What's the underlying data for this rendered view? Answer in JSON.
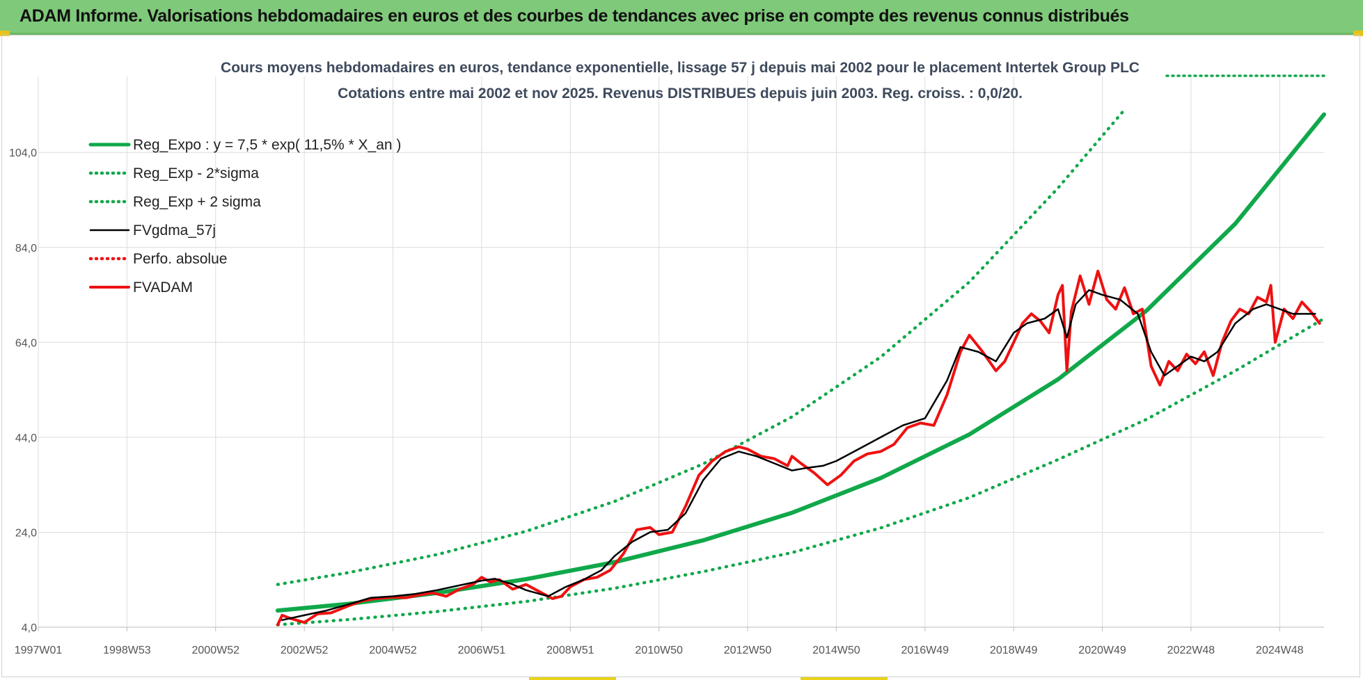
{
  "header": {
    "title": "ADAM Informe. Valorisations hebdomadaires en euros et des courbes de tendances avec prise en compte des revenus connus distribués"
  },
  "chart_data": {
    "type": "line",
    "title": "Cours moyens hebdomadaires en euros, tendance exponentielle, lissage 57 j depuis mai 2002 pour le placement Intertek Group PLC",
    "subtitle": "Cotations entre mai 2002 et nov 2025. Revenus DISTRIBUES depuis juin 2003. Reg. croiss. : 0,0/20.",
    "xlabel": "",
    "ylabel": "",
    "x_tick_labels": [
      "1997W01",
      "1998W53",
      "2000W52",
      "2002W52",
      "2004W52",
      "2006W51",
      "2008W51",
      "2010W50",
      "2012W50",
      "2014W50",
      "2016W49",
      "2018W49",
      "2020W49",
      "2022W48",
      "2024W48"
    ],
    "x_tick_values": [
      1997.0,
      1999.0,
      2001.0,
      2003.0,
      2005.0,
      2007.0,
      2009.0,
      2011.0,
      2013.0,
      2015.0,
      2017.0,
      2019.0,
      2021.0,
      2023.0,
      2025.0
    ],
    "y_tick_labels": [
      "4,0",
      "24,0",
      "44,0",
      "64,0",
      "84,0",
      "104,0"
    ],
    "y_tick_values": [
      4,
      24,
      44,
      64,
      84,
      104
    ],
    "xlim": [
      1997.0,
      2026.0
    ],
    "ylim": [
      4,
      120
    ],
    "grid": true,
    "legend_position": "top-left",
    "colors": {
      "green": "#10a84a",
      "black": "#000000",
      "red": "#ee1111",
      "grid": "#dcdcdc",
      "axis_text": "#555555",
      "title_text": "#3e4a5c"
    },
    "series": [
      {
        "name": "Reg_Expo : y = 7,5 * exp( 11,5% *  X_an )",
        "style": "solid-thick",
        "color": "#10a84a",
        "x": [
          2002.4,
          2004,
          2006,
          2008,
          2010,
          2012,
          2014,
          2016,
          2018,
          2020,
          2022,
          2024,
          2026
        ],
        "y": [
          7.5,
          8.9,
          11.2,
          14.1,
          17.7,
          22.3,
          28.1,
          35.4,
          44.6,
          56.2,
          70.7,
          89.0,
          112.0
        ]
      },
      {
        "name": "Reg_Exp - 2*sigma",
        "style": "dotted",
        "color": "#10a84a",
        "x": [
          2002.4,
          2004,
          2006,
          2008,
          2010,
          2012,
          2014,
          2016,
          2018,
          2020,
          2022,
          2024,
          2026
        ],
        "y": [
          4.5,
          5.6,
          7.3,
          9.4,
          12.2,
          15.7,
          19.7,
          24.9,
          31.3,
          39.3,
          47.8,
          58.0,
          69.0
        ]
      },
      {
        "name": "Reg_Exp + 2 sigma",
        "style": "dotted",
        "color": "#10a84a",
        "x": [
          2002.4,
          2004,
          2006,
          2008,
          2010,
          2012,
          2014,
          2016,
          2018,
          2020,
          2021.5
        ],
        "y": [
          13.0,
          15.5,
          19.3,
          24.2,
          30.5,
          38.4,
          48.3,
          60.9,
          76.7,
          96.5,
          113.0
        ]
      },
      {
        "name": "FVgdma_57j",
        "style": "solid",
        "color": "#000000",
        "x": [
          2002.5,
          2003.0,
          2003.5,
          2004.0,
          2004.5,
          2005.0,
          2005.5,
          2006.0,
          2006.5,
          2007.0,
          2007.3,
          2007.7,
          2008.0,
          2008.5,
          2008.9,
          2009.3,
          2009.7,
          2010.0,
          2010.4,
          2010.8,
          2011.2,
          2011.6,
          2012.0,
          2012.4,
          2012.8,
          2013.2,
          2013.6,
          2014.0,
          2014.3,
          2014.7,
          2015.0,
          2015.5,
          2016.0,
          2016.5,
          2017.0,
          2017.5,
          2017.8,
          2018.2,
          2018.6,
          2019.0,
          2019.3,
          2019.7,
          2020.0,
          2020.2,
          2020.4,
          2020.7,
          2021.0,
          2021.4,
          2021.8,
          2022.1,
          2022.4,
          2022.7,
          2023.0,
          2023.3,
          2023.6,
          2024.0,
          2024.4,
          2024.7,
          2025.0,
          2025.3,
          2025.8
        ],
        "y": [
          5.5,
          6.5,
          7.5,
          8.8,
          10.2,
          10.5,
          11.0,
          11.8,
          12.8,
          13.8,
          14.2,
          13.0,
          11.8,
          10.5,
          12.5,
          14.0,
          16.0,
          19.0,
          22.0,
          24.0,
          24.5,
          28.0,
          35.0,
          39.5,
          41.0,
          40.0,
          38.5,
          37.0,
          37.5,
          38.0,
          39.0,
          41.5,
          44.0,
          46.5,
          48.0,
          56.0,
          63.0,
          62.0,
          60.0,
          66.0,
          68.0,
          69.0,
          71.0,
          65.0,
          72.0,
          75.0,
          74.0,
          73.0,
          70.0,
          62.0,
          57.0,
          59.0,
          61.0,
          60.0,
          62.0,
          68.0,
          71.0,
          72.0,
          71.0,
          70.0,
          70.0
        ]
      },
      {
        "name": "Perfo. absolue",
        "style": "dotted",
        "color": "#ee1111",
        "x": [],
        "y": []
      },
      {
        "name": "FVADAM",
        "style": "solid-thick",
        "color": "#ee1111",
        "x": [
          2002.4,
          2002.5,
          2002.7,
          2003.0,
          2003.3,
          2003.6,
          2004.0,
          2004.3,
          2004.6,
          2005.0,
          2005.3,
          2005.6,
          2005.9,
          2006.2,
          2006.5,
          2006.8,
          2007.0,
          2007.2,
          2007.4,
          2007.7,
          2008.0,
          2008.3,
          2008.6,
          2008.8,
          2009.0,
          2009.3,
          2009.6,
          2009.9,
          2010.2,
          2010.5,
          2010.8,
          2011.0,
          2011.3,
          2011.6,
          2011.9,
          2012.2,
          2012.5,
          2012.8,
          2013.0,
          2013.3,
          2013.6,
          2013.9,
          2014.0,
          2014.2,
          2014.5,
          2014.8,
          2015.1,
          2015.4,
          2015.7,
          2016.0,
          2016.3,
          2016.6,
          2016.9,
          2017.2,
          2017.5,
          2017.8,
          2018.0,
          2018.3,
          2018.6,
          2018.8,
          2019.0,
          2019.2,
          2019.4,
          2019.6,
          2019.8,
          2020.0,
          2020.1,
          2020.2,
          2020.3,
          2020.5,
          2020.7,
          2020.9,
          2021.1,
          2021.3,
          2021.5,
          2021.7,
          2021.9,
          2022.1,
          2022.3,
          2022.5,
          2022.7,
          2022.9,
          2023.1,
          2023.3,
          2023.5,
          2023.7,
          2023.9,
          2024.1,
          2024.3,
          2024.5,
          2024.7,
          2024.8,
          2024.9,
          2025.1,
          2025.3,
          2025.5,
          2025.7,
          2025.9
        ],
        "y": [
          4.5,
          6.5,
          5.8,
          5.0,
          6.8,
          7.0,
          8.5,
          9.5,
          10.0,
          10.3,
          10.2,
          10.8,
          11.2,
          10.5,
          12.0,
          13.0,
          14.5,
          13.5,
          14.0,
          12.0,
          13.0,
          11.5,
          10.0,
          10.5,
          12.5,
          14.0,
          14.5,
          16.0,
          19.5,
          24.5,
          25.0,
          23.5,
          24.0,
          29.5,
          36.0,
          39.0,
          41.0,
          42.0,
          41.5,
          40.0,
          39.5,
          38.0,
          40.0,
          38.5,
          36.5,
          34.0,
          36.0,
          39.0,
          40.5,
          41.0,
          42.5,
          46.0,
          47.0,
          46.5,
          53.0,
          62.0,
          65.5,
          62.0,
          58.0,
          60.0,
          64.0,
          68.0,
          70.0,
          68.5,
          66.0,
          74.0,
          76.0,
          58.0,
          70.5,
          78.0,
          72.0,
          79.0,
          73.0,
          71.0,
          75.5,
          70.0,
          71.0,
          59.0,
          55.0,
          60.0,
          58.0,
          61.5,
          59.5,
          62.0,
          57.0,
          64.0,
          68.5,
          71.0,
          70.0,
          73.5,
          72.5,
          76.0,
          64.0,
          71.0,
          69.0,
          72.5,
          70.5,
          68.0
        ]
      }
    ]
  }
}
